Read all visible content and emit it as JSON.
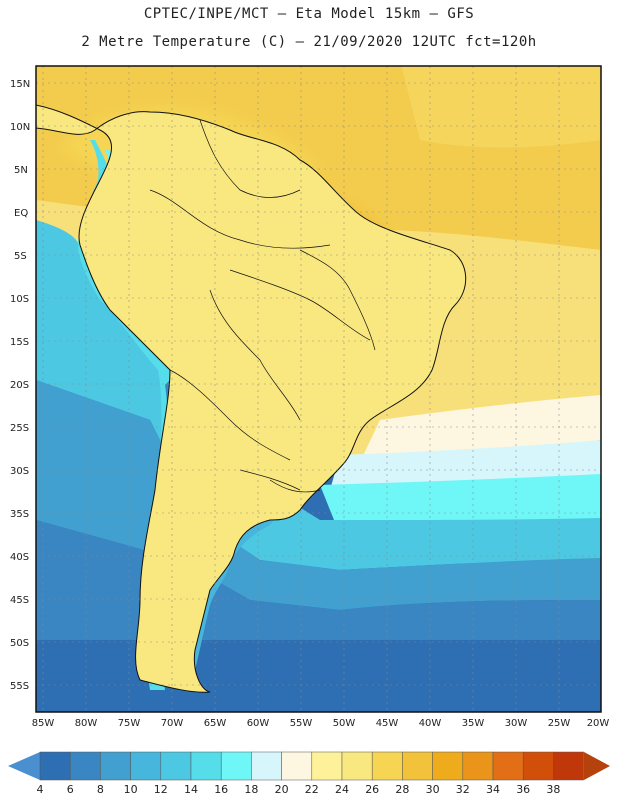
{
  "header": {
    "line1": "CPTEC/INPE/MCT –  Eta Model 15km – GFS",
    "line2": "2 Metre Temperature (C) – 21/09/2020 12UTC fct=120h"
  },
  "axes": {
    "lat_labels": [
      "15N",
      "10N",
      "5N",
      "EQ",
      "5S",
      "10S",
      "15S",
      "20S",
      "25S",
      "30S",
      "35S",
      "40S",
      "45S",
      "50S",
      "55S"
    ],
    "lon_labels": [
      "85W",
      "80W",
      "75W",
      "70W",
      "65W",
      "60W",
      "55W",
      "50W",
      "45W",
      "40W",
      "35W",
      "30W",
      "25W",
      "20W"
    ]
  },
  "colorbar": {
    "labels": [
      "4",
      "6",
      "8",
      "10",
      "12",
      "14",
      "16",
      "18",
      "20",
      "22",
      "24",
      "26",
      "28",
      "30",
      "32",
      "34",
      "36",
      "38"
    ],
    "colors": [
      "#2e6fb3",
      "#3a86c2",
      "#41a0cf",
      "#47b6dc",
      "#4cc8e3",
      "#55dde9",
      "#6ff6f6",
      "#d6f6fb",
      "#fdf6e1",
      "#fdf19a",
      "#f9e77f",
      "#f5d552",
      "#f1c23a",
      "#eeac1d",
      "#ea941a",
      "#e26f16",
      "#d24f0a",
      "#c0380a"
    ],
    "low_color": "#4a8fcf",
    "high_color": "#b5410d"
  }
}
